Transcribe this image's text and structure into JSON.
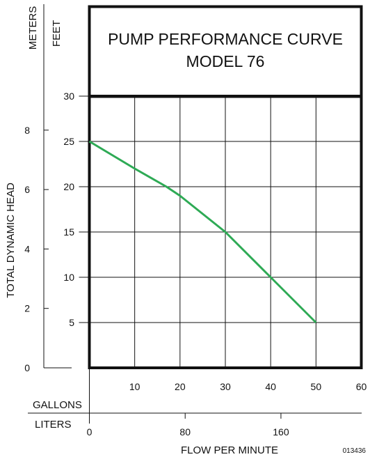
{
  "chart_data": {
    "type": "line",
    "title_line1": "PUMP PERFORMANCE CURVE",
    "title_line2": "MODEL 76",
    "ylabel": "TOTAL DYNAMIC HEAD",
    "xlabel": "FLOW PER MINUTE",
    "y_unit_meters": "METERS",
    "y_unit_feet": "FEET",
    "x_unit_gallons": "GALLONS",
    "x_unit_liters": "LITERS",
    "figure_code": "013436",
    "xlim": [
      0,
      60
    ],
    "ylim": [
      0,
      30
    ],
    "feet_ticks": [
      "5",
      "10",
      "15",
      "20",
      "25",
      "30"
    ],
    "meters_ticks": [
      "0",
      "2",
      "4",
      "6",
      "8"
    ],
    "gallons_ticks": [
      "10",
      "20",
      "30",
      "40",
      "50",
      "60"
    ],
    "liters_ticks": [
      "0",
      "80",
      "160"
    ],
    "grid": true,
    "series": [
      {
        "x": [
          0,
          10,
          17,
          20,
          30,
          40,
          50
        ],
        "y": [
          25,
          22,
          20,
          19,
          15,
          10,
          5
        ],
        "color": "#2eaa55"
      }
    ]
  }
}
